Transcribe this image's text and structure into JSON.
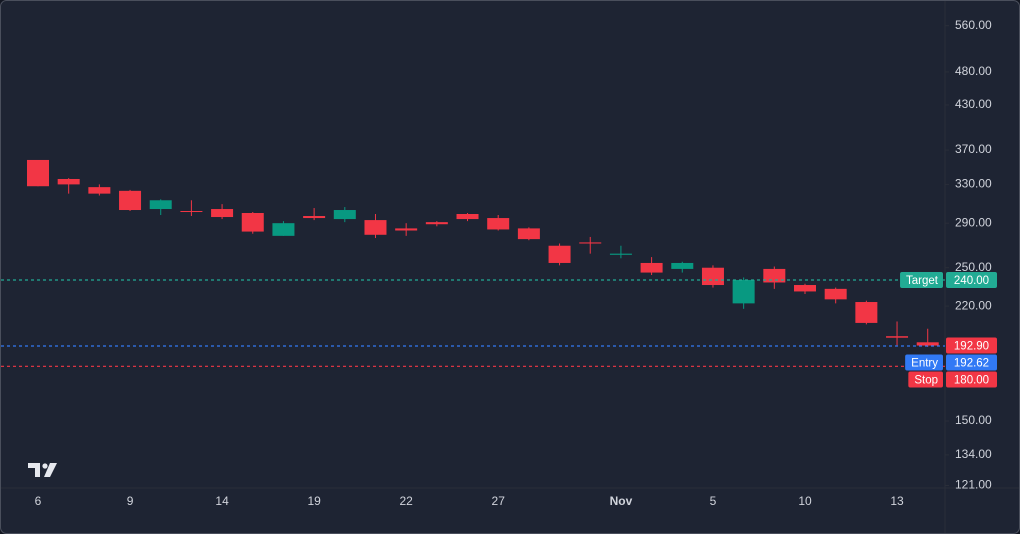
{
  "chart_data": {
    "type": "candlestick",
    "categories": [
      "6",
      null,
      null,
      "9",
      null,
      null,
      "14",
      null,
      null,
      "19",
      null,
      null,
      "22",
      null,
      null,
      "27",
      null,
      null,
      null,
      "Nov",
      null,
      null,
      "5",
      null,
      null,
      "10",
      null,
      null,
      "13",
      null
    ],
    "series": [
      {
        "up_color": "#089981",
        "down_color": "#f23645",
        "open": [
          358,
          336,
          327,
          323,
          304,
          302,
          304,
          300,
          278,
          297,
          294,
          293,
          285,
          291,
          299,
          295,
          285,
          269,
          272,
          261,
          254,
          249,
          250,
          222,
          249,
          236,
          233,
          223,
          199,
          195
        ],
        "high": [
          358,
          337,
          330,
          324,
          314,
          313,
          309,
          301,
          292,
          305,
          306,
          299,
          290,
          292,
          300,
          298,
          286,
          271,
          277,
          269,
          259,
          255,
          252,
          242,
          251,
          237,
          234,
          224,
          209,
          204
        ],
        "low": [
          328,
          320,
          318,
          302,
          298,
          297,
          294,
          280,
          278,
          293,
          291,
          276,
          278,
          287,
          292,
          283,
          274,
          252,
          262,
          258,
          244,
          246,
          234,
          218,
          233,
          229,
          222,
          207,
          193,
          192
        ],
        "close": [
          328,
          330,
          320,
          303,
          313,
          301,
          296,
          282,
          290,
          295,
          303,
          279,
          283,
          289,
          294,
          284,
          275,
          254,
          271,
          262,
          246,
          254,
          236,
          240,
          238,
          231,
          225,
          208,
          198,
          192.9
        ]
      }
    ],
    "log_scale": true,
    "ylim": [
      120,
      608
    ],
    "yticks": [
      {
        "value": 560,
        "label": "560.00"
      },
      {
        "value": 480,
        "label": "480.00"
      },
      {
        "value": 430,
        "label": "430.00"
      },
      {
        "value": 370,
        "label": "370.00"
      },
      {
        "value": 330,
        "label": "330.00"
      },
      {
        "value": 290,
        "label": "290.00"
      },
      {
        "value": 250,
        "label": "250.00"
      },
      {
        "value": 220,
        "label": "220.00"
      },
      {
        "value": 150,
        "label": "150.00"
      },
      {
        "value": 134,
        "label": "134.00"
      },
      {
        "value": 121,
        "label": "121.00"
      }
    ],
    "last_price": 192.9,
    "last_price_label": "192.90",
    "last_price_color": "#f23645",
    "levels": [
      {
        "name": "Target",
        "value": 240,
        "value_label": "240.00",
        "color": "#22ab94"
      },
      {
        "name": "Entry",
        "value": 192.62,
        "value_label": "192.62",
        "color": "#3179f5"
      },
      {
        "name": "Stop",
        "value": 180,
        "value_label": "180.00",
        "color": "#f23645"
      }
    ]
  }
}
